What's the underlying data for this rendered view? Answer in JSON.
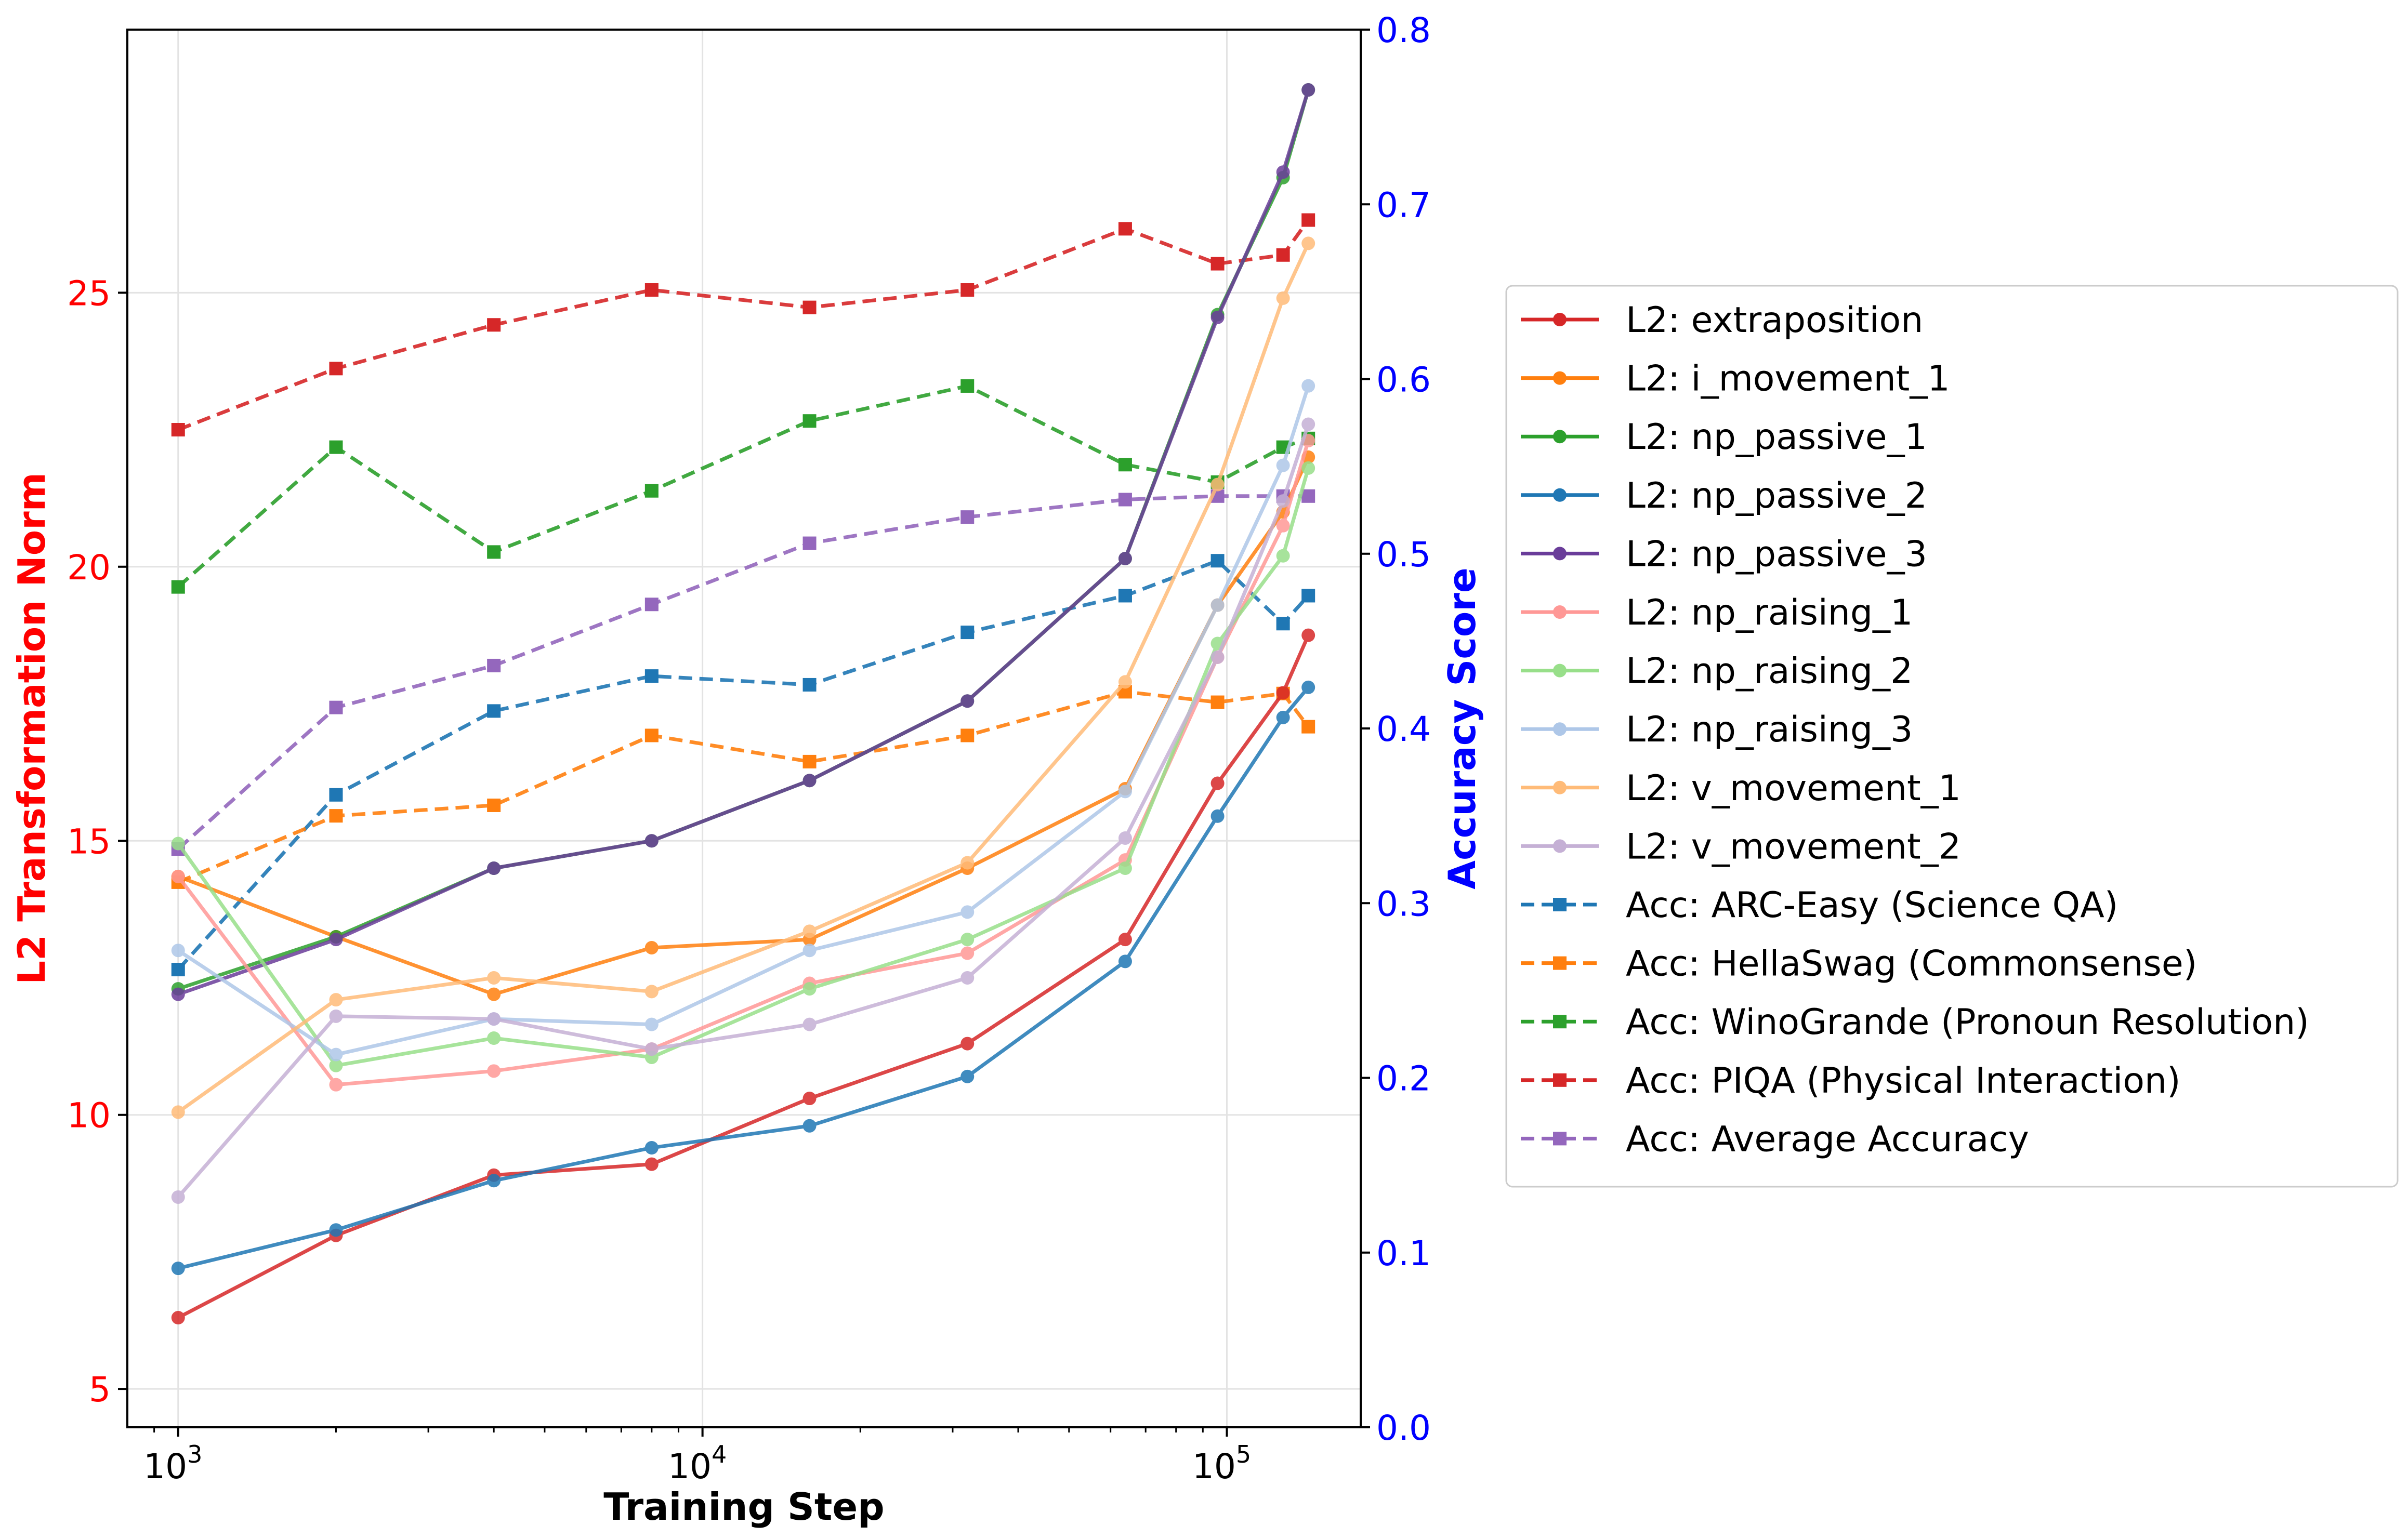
{
  "chart_data": {
    "type": "line",
    "title": "",
    "xlabel": "Training Step",
    "ylabel_left": "L2 Transformation Norm",
    "ylabel_right": "Accuracy Score",
    "x_scale": "log",
    "xlim": [
      800,
      180000
    ],
    "ylim_left": [
      4.3,
      29.8
    ],
    "ylim_right": [
      0.0,
      0.8
    ],
    "grid": true,
    "legend_position": "outside-right",
    "left_axis_color": "#ff0000",
    "right_axis_color": "#0000ff",
    "x_ticks": [
      {
        "value": 1000,
        "base": "10",
        "exp": "3"
      },
      {
        "value": 10000,
        "base": "10",
        "exp": "4"
      },
      {
        "value": 100000,
        "base": "10",
        "exp": "5"
      }
    ],
    "y_left_ticks": [
      5,
      10,
      15,
      20,
      25
    ],
    "y_right_ticks": [
      "0.0",
      "0.1",
      "0.2",
      "0.3",
      "0.4",
      "0.5",
      "0.6",
      "0.7",
      "0.8"
    ],
    "x": [
      1000,
      2000,
      4000,
      8000,
      16000,
      32000,
      64000,
      96000,
      128000,
      143000
    ],
    "l2_series": [
      {
        "name": "L2: extraposition",
        "color": "#d62728",
        "values": [
          6.3,
          7.8,
          8.9,
          9.1,
          10.3,
          11.3,
          13.2,
          16.05,
          17.7,
          18.75
        ]
      },
      {
        "name": "L2: i_movement_1",
        "color": "#ff7f0e",
        "values": [
          14.35,
          13.25,
          12.2,
          13.05,
          13.2,
          14.5,
          15.95,
          19.3,
          21.0,
          22.0
        ]
      },
      {
        "name": "L2: np_passive_1",
        "color": "#2ca02c",
        "values": [
          12.3,
          13.25,
          14.5,
          15.0,
          16.1,
          17.55,
          20.15,
          24.6,
          27.1,
          28.7
        ]
      },
      {
        "name": "L2: np_passive_2",
        "color": "#1f77b4",
        "values": [
          7.2,
          7.9,
          8.8,
          9.4,
          9.8,
          10.7,
          12.8,
          15.45,
          17.25,
          17.8
        ]
      },
      {
        "name": "L2: np_passive_3",
        "color": "#6a3d9a",
        "values": [
          12.2,
          13.2,
          14.5,
          15.0,
          16.1,
          17.55,
          20.15,
          24.55,
          27.2,
          28.7
        ]
      },
      {
        "name": "L2: np_raising_1",
        "color": "#ff9896",
        "values": [
          14.35,
          10.55,
          10.8,
          11.2,
          12.4,
          12.95,
          14.65,
          18.35,
          20.75,
          22.3
        ]
      },
      {
        "name": "L2: np_raising_2",
        "color": "#98df8a",
        "values": [
          14.95,
          10.9,
          11.4,
          11.05,
          12.3,
          13.2,
          14.5,
          18.6,
          20.2,
          21.8
        ]
      },
      {
        "name": "L2: np_raising_3",
        "color": "#aec7e8",
        "values": [
          13.0,
          11.1,
          11.75,
          11.65,
          13.0,
          13.7,
          15.9,
          19.3,
          21.85,
          23.3
        ]
      },
      {
        "name": "L2: v_movement_1",
        "color": "#ffbb78",
        "values": [
          10.05,
          12.1,
          12.5,
          12.25,
          13.35,
          14.6,
          17.9,
          21.5,
          24.9,
          25.9
        ]
      },
      {
        "name": "L2: v_movement_2",
        "color": "#c5b0d5",
        "values": [
          8.5,
          11.8,
          11.75,
          11.2,
          11.65,
          12.5,
          15.05,
          18.35,
          21.2,
          22.6
        ]
      }
    ],
    "acc_series": [
      {
        "name": "Acc: ARC-Easy (Science QA)",
        "color": "#1f77b4",
        "values": [
          0.262,
          0.362,
          0.41,
          0.43,
          0.425,
          0.455,
          0.476,
          0.496,
          0.46,
          0.476
        ]
      },
      {
        "name": "Acc: HellaSwag (Commonsense)",
        "color": "#ff7f0e",
        "values": [
          0.312,
          0.35,
          0.356,
          0.396,
          0.381,
          0.396,
          0.421,
          0.415,
          0.42,
          0.401
        ]
      },
      {
        "name": "Acc: WinoGrande (Pronoun Resolution)",
        "color": "#2ca02c",
        "values": [
          0.481,
          0.561,
          0.501,
          0.536,
          0.576,
          0.596,
          0.551,
          0.541,
          0.561,
          0.566
        ]
      },
      {
        "name": "Acc: PIQA (Physical Interaction)",
        "color": "#d62728",
        "values": [
          0.571,
          0.606,
          0.631,
          0.651,
          0.641,
          0.651,
          0.686,
          0.666,
          0.671,
          0.691
        ]
      },
      {
        "name": "Acc: Average Accuracy",
        "color": "#9467bd",
        "values": [
          0.331,
          0.412,
          0.436,
          0.471,
          0.506,
          0.521,
          0.531,
          0.533,
          0.533,
          0.533
        ]
      }
    ]
  }
}
